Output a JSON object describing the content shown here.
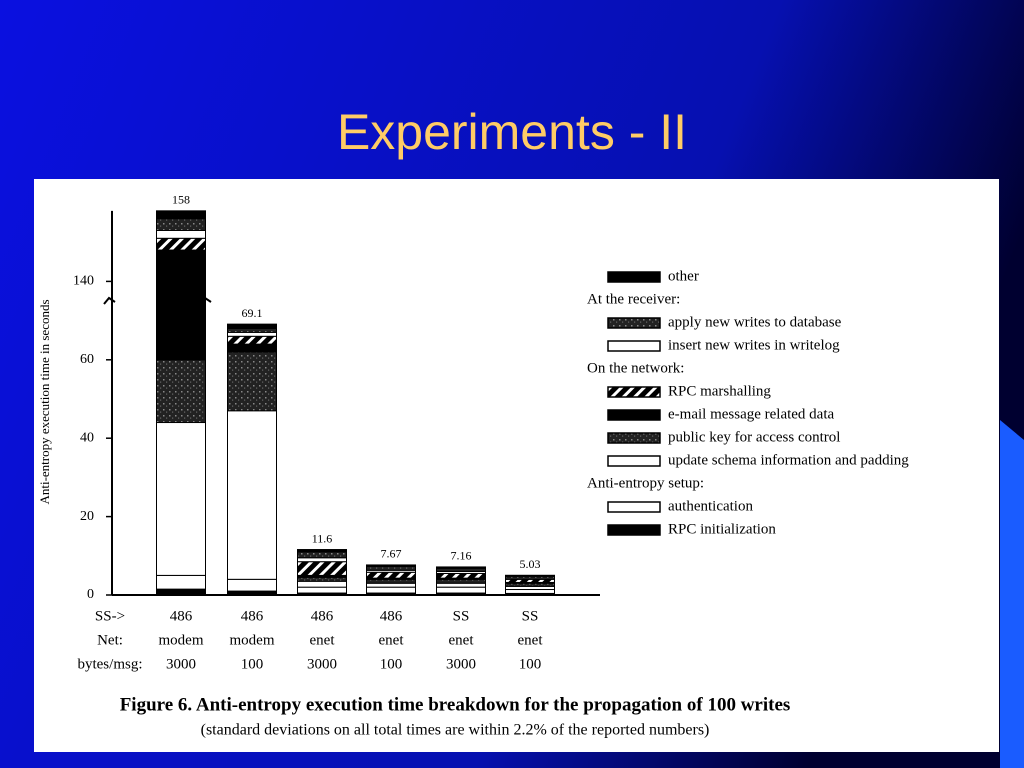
{
  "slide": {
    "title": "Experiments - II"
  },
  "chart_data": {
    "type": "stacked-bar",
    "y_label": "Anti-entropy execution time in seconds",
    "category_headers": [
      "SS->",
      "Net:",
      "bytes/msg:"
    ],
    "categories": [
      [
        "486",
        "modem",
        "3000"
      ],
      [
        "486",
        "modem",
        "100"
      ],
      [
        "486",
        "enet",
        "3000"
      ],
      [
        "486",
        "enet",
        "100"
      ],
      [
        "SS",
        "enet",
        "3000"
      ],
      [
        "SS",
        "enet",
        "100"
      ]
    ],
    "totals": [
      158,
      69.1,
      11.6,
      7.67,
      7.16,
      5.03
    ],
    "series": [
      {
        "name": "RPC initialization",
        "color": "#000000",
        "pattern": "solid",
        "values": [
          1.5,
          1,
          0.5,
          0.5,
          0.5,
          0.4
        ]
      },
      {
        "name": "authentication",
        "color": "#ffffff",
        "pattern": "solid",
        "values": [
          3.5,
          3,
          1.5,
          1.5,
          1.5,
          1
        ]
      },
      {
        "name": "update schema information and padding",
        "color": "#ffffff",
        "pattern": "solid",
        "values": [
          39,
          43,
          1.5,
          1,
          1,
          0.8
        ]
      },
      {
        "name": "public key for access control",
        "color": "#222222",
        "pattern": "speckle",
        "values": [
          16,
          15,
          1,
          1,
          1,
          0.8
        ]
      },
      {
        "name": "e-mail message related data",
        "color": "#000000",
        "pattern": "solid",
        "values": [
          88,
          2,
          0.5,
          0.3,
          0.3,
          0.2
        ]
      },
      {
        "name": "RPC marshalling",
        "color": "#000000",
        "pattern": "hatch",
        "values": [
          3,
          2,
          3.5,
          1.5,
          1.2,
          0.8
        ]
      },
      {
        "name": "insert new writes in writelog",
        "color": "#ffffff",
        "pattern": "solid",
        "values": [
          2,
          1,
          1,
          0.5,
          0.5,
          0.3
        ]
      },
      {
        "name": "apply new writes to database",
        "color": "#222222",
        "pattern": "speckle",
        "values": [
          3,
          1,
          1.5,
          1,
          0.8,
          0.5
        ]
      },
      {
        "name": "other",
        "color": "#000000",
        "pattern": "solid",
        "values": [
          2,
          1.1,
          0.6,
          0.37,
          0.36,
          0.23
        ]
      }
    ],
    "legend_groups": [
      {
        "title": null,
        "series": [
          8
        ]
      },
      {
        "title": "At the receiver:",
        "series": [
          7,
          6
        ]
      },
      {
        "title": "On the network:",
        "series": [
          5,
          4,
          3,
          2
        ]
      },
      {
        "title": "Anti-entropy setup:",
        "series": [
          1,
          0
        ]
      }
    ],
    "ylim": [
      0,
      158
    ],
    "yticks": [
      0,
      20,
      40,
      60,
      140
    ],
    "axis_break": [
      75,
      135
    ],
    "caption": "Figure 6.  Anti-entropy execution time breakdown for the propagation of 100 writes",
    "subcaption": "(standard deviations on all total times are within 2.2% of the reported numbers)"
  }
}
